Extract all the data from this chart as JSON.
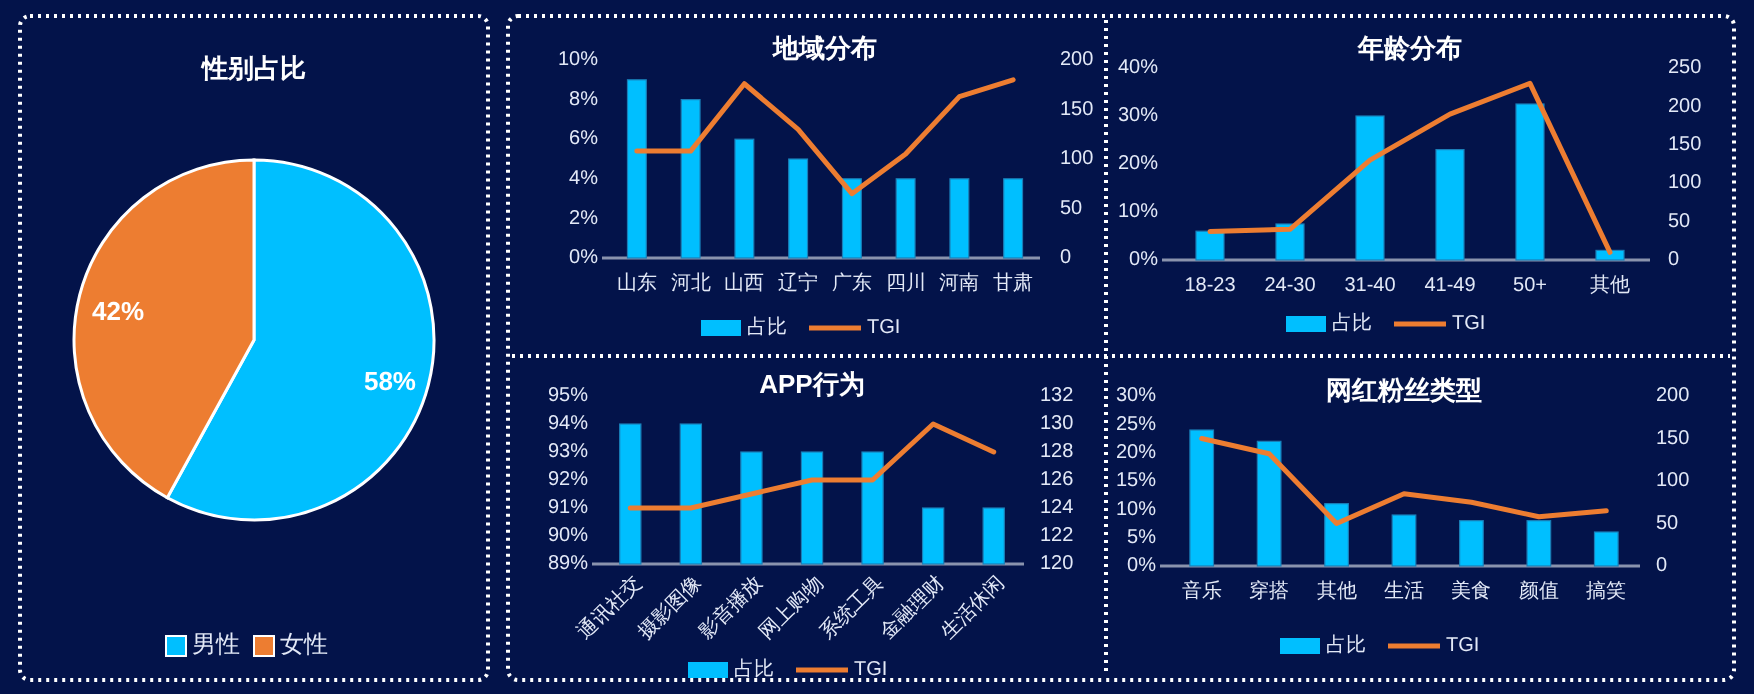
{
  "chart_data": [
    {
      "type": "pie",
      "title": "性别占比",
      "categories": [
        "男性",
        "女性"
      ],
      "values": [
        58,
        42
      ],
      "colors": [
        "#00bfff",
        "#ed7d31"
      ],
      "value_labels": [
        "58%",
        "42%"
      ],
      "legend": "bottom"
    },
    {
      "type": "bar",
      "title": "地域分布",
      "categories": [
        "山东",
        "河北",
        "山西",
        "辽宁",
        "广东",
        "四川",
        "河南",
        "甘肃"
      ],
      "series": [
        {
          "name": "占比",
          "type": "bar",
          "color": "#00bfff",
          "values": [
            9,
            8,
            6,
            5,
            4,
            4,
            4,
            4
          ]
        },
        {
          "name": "TGI",
          "type": "line",
          "axis": "y2",
          "color": "#ed7d31",
          "values": [
            108,
            108,
            176,
            130,
            65,
            105,
            163,
            180
          ]
        }
      ],
      "ylim": [
        0,
        10
      ],
      "yticks": [
        {
          "value": 0,
          "label": "0%"
        },
        {
          "value": 2,
          "label": "2%"
        },
        {
          "value": 4,
          "label": "4%"
        },
        {
          "value": 6,
          "label": "6%"
        },
        {
          "value": 8,
          "label": "8%"
        },
        {
          "value": 10,
          "label": "10%"
        }
      ],
      "y2lim": [
        0,
        200
      ],
      "y2ticks": [
        0,
        50,
        100,
        150,
        200
      ],
      "legend": "bottom"
    },
    {
      "type": "bar",
      "title": "年龄分布",
      "categories": [
        "18-23",
        "24-30",
        "31-40",
        "41-49",
        "50+",
        "其他"
      ],
      "series": [
        {
          "name": "占比",
          "type": "bar",
          "color": "#00bfff",
          "values": [
            6,
            7.5,
            30,
            23,
            32.5,
            2
          ]
        },
        {
          "name": "TGI",
          "type": "line",
          "axis": "y2",
          "color": "#ed7d31",
          "values": [
            37,
            40,
            130,
            190,
            230,
            10
          ]
        }
      ],
      "ylim": [
        0,
        40
      ],
      "yticks": [
        {
          "value": 0,
          "label": "0%"
        },
        {
          "value": 10,
          "label": "10%"
        },
        {
          "value": 20,
          "label": "20%"
        },
        {
          "value": 30,
          "label": "30%"
        },
        {
          "value": 40,
          "label": "40%"
        }
      ],
      "y2lim": [
        0,
        250
      ],
      "y2ticks": [
        0,
        50,
        100,
        150,
        200,
        250
      ],
      "legend": "bottom"
    },
    {
      "type": "bar",
      "title": "APP行为",
      "categories": [
        "通讯社交",
        "摄影图像",
        "影音播放",
        "网上购物",
        "系统工具",
        "金融理财",
        "生活休闲"
      ],
      "series": [
        {
          "name": "占比",
          "type": "bar",
          "color": "#00bfff",
          "values": [
            94,
            94,
            93,
            93,
            93,
            91,
            91
          ]
        },
        {
          "name": "TGI",
          "type": "line",
          "axis": "y2",
          "color": "#ed7d31",
          "values": [
            124,
            124,
            125,
            126,
            126,
            130,
            128
          ]
        }
      ],
      "ylim": [
        89,
        95
      ],
      "yticks": [
        {
          "value": 89,
          "label": "89%"
        },
        {
          "value": 90,
          "label": "90%"
        },
        {
          "value": 91,
          "label": "91%"
        },
        {
          "value": 92,
          "label": "92%"
        },
        {
          "value": 93,
          "label": "93%"
        },
        {
          "value": 94,
          "label": "94%"
        },
        {
          "value": 95,
          "label": "95%"
        }
      ],
      "y2lim": [
        120,
        132
      ],
      "y2ticks": [
        120,
        122,
        124,
        126,
        128,
        130,
        132
      ],
      "legend": "bottom"
    },
    {
      "type": "bar",
      "title": "网红粉丝类型",
      "categories": [
        "音乐",
        "穿搭",
        "其他",
        "生活",
        "美食",
        "颜值",
        "搞笑"
      ],
      "series": [
        {
          "name": "占比",
          "type": "bar",
          "color": "#00bfff",
          "values": [
            24,
            22,
            11,
            9,
            8,
            8,
            6
          ]
        },
        {
          "name": "TGI",
          "type": "line",
          "axis": "y2",
          "color": "#ed7d31",
          "values": [
            150,
            132,
            50,
            85,
            75,
            58,
            65
          ]
        }
      ],
      "ylim": [
        0,
        30
      ],
      "yticks": [
        {
          "value": 0,
          "label": "0%"
        },
        {
          "value": 5,
          "label": "5%"
        },
        {
          "value": 10,
          "label": "10%"
        },
        {
          "value": 15,
          "label": "15%"
        },
        {
          "value": 20,
          "label": "20%"
        },
        {
          "value": 25,
          "label": "25%"
        },
        {
          "value": 30,
          "label": "30%"
        }
      ],
      "y2lim": [
        0,
        200
      ],
      "y2ticks": [
        0,
        50,
        100,
        150,
        200
      ],
      "legend": "bottom"
    }
  ]
}
